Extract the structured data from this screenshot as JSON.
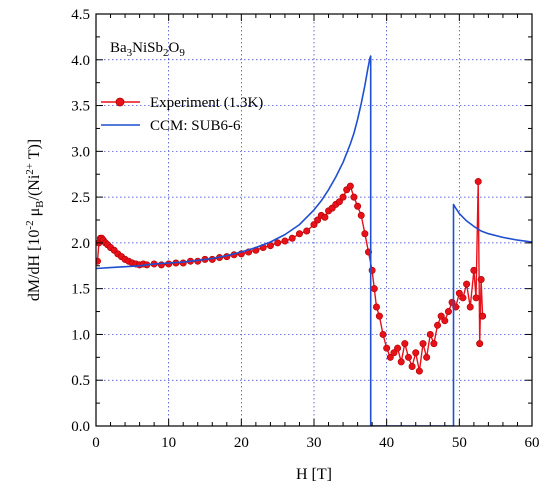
{
  "chart_data": {
    "type": "line",
    "annotation": {
      "base": "Ba",
      "s1": "3",
      "mid1": "NiSb",
      "s2": "2",
      "mid2": "O",
      "s3": "9"
    },
    "xlabel": "H [T]",
    "ylabel": {
      "a": "dM/dH [10",
      "exp": "-2",
      "b": " μ",
      "sub": "B",
      "c": "/(Ni",
      "sup": "2+",
      "d": " T)]"
    },
    "xlim": [
      0,
      60
    ],
    "ylim": [
      0,
      4.5
    ],
    "xticks": [
      0,
      10,
      20,
      30,
      40,
      50,
      60
    ],
    "yticks": [
      "0.0",
      "0.5",
      "1.0",
      "1.5",
      "2.0",
      "2.5",
      "3.0",
      "3.5",
      "4.0",
      "4.5"
    ],
    "grid": true,
    "legend": {
      "position": "upper-left"
    },
    "series": [
      {
        "name": "Experiment (1.3K)",
        "style": "line-markers",
        "color": "#e8111a",
        "x": [
          0.2,
          0.4,
          0.6,
          0.8,
          1.0,
          1.3,
          1.6,
          2.0,
          2.5,
          3.0,
          3.5,
          4.0,
          4.5,
          5.0,
          5.5,
          6.0,
          6.5,
          7.0,
          8.0,
          9.0,
          10.0,
          11.0,
          12.0,
          13.0,
          14.0,
          15.0,
          16.0,
          17.0,
          18.0,
          19.0,
          20.0,
          21.0,
          22.0,
          23.0,
          24.0,
          25.0,
          26.0,
          27.0,
          28.0,
          29.0,
          30.0,
          30.5,
          31.0,
          31.5,
          32.0,
          32.5,
          33.0,
          33.5,
          34.0,
          34.5,
          35.0,
          35.5,
          36.0,
          36.5,
          37.0,
          37.5,
          38.0,
          38.3,
          38.6,
          39.0,
          39.5,
          40.0,
          40.5,
          41.0,
          41.5,
          42.0,
          42.5,
          43.0,
          43.5,
          44.0,
          44.5,
          45.0,
          45.5,
          46.0,
          46.5,
          47.0,
          47.5,
          48.0,
          48.5,
          49.0,
          49.5,
          50.0,
          50.5,
          51.0,
          51.5,
          52.0,
          52.3,
          52.6,
          52.8,
          53.0,
          53.2
        ],
        "y": [
          1.8,
          2.0,
          2.05,
          2.05,
          2.03,
          2.0,
          1.98,
          1.95,
          1.92,
          1.88,
          1.85,
          1.82,
          1.8,
          1.78,
          1.77,
          1.76,
          1.77,
          1.76,
          1.77,
          1.76,
          1.77,
          1.78,
          1.78,
          1.8,
          1.8,
          1.82,
          1.82,
          1.84,
          1.85,
          1.87,
          1.88,
          1.9,
          1.92,
          1.95,
          1.97,
          2.0,
          2.02,
          2.05,
          2.1,
          2.13,
          2.2,
          2.25,
          2.3,
          2.28,
          2.35,
          2.38,
          2.42,
          2.45,
          2.5,
          2.58,
          2.62,
          2.5,
          2.4,
          2.3,
          2.1,
          1.9,
          1.7,
          1.5,
          1.3,
          1.2,
          1.0,
          0.85,
          0.75,
          0.8,
          0.85,
          0.7,
          0.9,
          0.75,
          0.65,
          0.8,
          0.6,
          0.9,
          0.75,
          1.0,
          0.9,
          1.1,
          1.2,
          1.15,
          1.25,
          1.35,
          1.3,
          1.45,
          1.4,
          1.55,
          1.3,
          1.7,
          1.4,
          2.67,
          0.9,
          1.6,
          1.2
        ]
      },
      {
        "name": "CCM: SUB6-6",
        "style": "line",
        "color": "#1f4fd1",
        "x": [
          0,
          2,
          4,
          6,
          8,
          10,
          12,
          14,
          16,
          18,
          20,
          22,
          24,
          26,
          28,
          30,
          31,
          32,
          33,
          34,
          35,
          35.5,
          36,
          36.5,
          37,
          37.4,
          37.7,
          37.8,
          37.8,
          40,
          45,
          49.2,
          49.2,
          49.5,
          50,
          51,
          52,
          53,
          54,
          56,
          58,
          60
        ],
        "y": [
          1.72,
          1.73,
          1.74,
          1.75,
          1.77,
          1.78,
          1.79,
          1.81,
          1.83,
          1.86,
          1.9,
          1.95,
          2.01,
          2.09,
          2.2,
          2.36,
          2.46,
          2.58,
          2.72,
          2.88,
          3.08,
          3.2,
          3.35,
          3.52,
          3.72,
          3.9,
          4.02,
          4.04,
          0.0,
          0.0,
          0.0,
          0.0,
          2.42,
          2.38,
          2.32,
          2.24,
          2.18,
          2.13,
          2.1,
          2.06,
          2.03,
          2.01
        ]
      }
    ]
  }
}
